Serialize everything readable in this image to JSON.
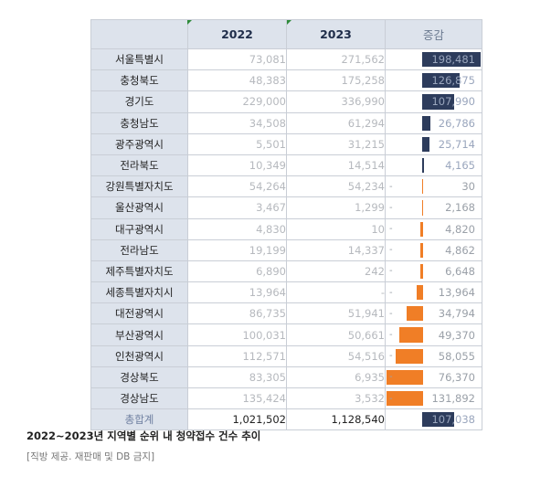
{
  "table": {
    "headers": {
      "region": "",
      "y2022": "2022",
      "y2023": "2023",
      "change": "증감"
    },
    "max_abs_change": 198481,
    "rows": [
      {
        "region": "서울특별시",
        "y2022": "73,081",
        "y2023": "271,562",
        "change": "198,481",
        "change_value": 198481,
        "dash": ""
      },
      {
        "region": "충청북도",
        "y2022": "48,383",
        "y2023": "175,258",
        "change": "126,875",
        "change_value": 126875,
        "dash": ""
      },
      {
        "region": "경기도",
        "y2022": "229,000",
        "y2023": "336,990",
        "change": "107,990",
        "change_value": 107990,
        "dash": ""
      },
      {
        "region": "충청남도",
        "y2022": "34,508",
        "y2023": "61,294",
        "change": "26,786",
        "change_value": 26786,
        "dash": ""
      },
      {
        "region": "광주광역시",
        "y2022": "5,501",
        "y2023": "31,215",
        "change": "25,714",
        "change_value": 25714,
        "dash": ""
      },
      {
        "region": "전라북도",
        "y2022": "10,349",
        "y2023": "14,514",
        "change": "4,165",
        "change_value": 4165,
        "dash": ""
      },
      {
        "region": "강원특별자치도",
        "y2022": "54,264",
        "y2023": "54,234",
        "change": "30",
        "change_value": -30,
        "dash": "-"
      },
      {
        "region": "울산광역시",
        "y2022": "3,467",
        "y2023": "1,299",
        "change": "2,168",
        "change_value": -2168,
        "dash": "-"
      },
      {
        "region": "대구광역시",
        "y2022": "4,830",
        "y2023": "10",
        "change": "4,820",
        "change_value": -4820,
        "dash": "-"
      },
      {
        "region": "전라남도",
        "y2022": "19,199",
        "y2023": "14,337",
        "change": "4,862",
        "change_value": -4862,
        "dash": "-"
      },
      {
        "region": "제주특별자치도",
        "y2022": "6,890",
        "y2023": "242",
        "change": "6,648",
        "change_value": -6648,
        "dash": "-"
      },
      {
        "region": "세종특별자치시",
        "y2022": "13,964",
        "y2023": "-",
        "change": "13,964",
        "change_value": -13964,
        "dash": "-"
      },
      {
        "region": "대전광역시",
        "y2022": "86,735",
        "y2023": "51,941",
        "change": "34,794",
        "change_value": -34794,
        "dash": "-"
      },
      {
        "region": "부산광역시",
        "y2022": "100,031",
        "y2023": "50,661",
        "change": "49,370",
        "change_value": -49370,
        "dash": "-"
      },
      {
        "region": "인천광역시",
        "y2022": "112,571",
        "y2023": "54,516",
        "change": "58,055",
        "change_value": -58055,
        "dash": "-"
      },
      {
        "region": "경상북도",
        "y2022": "83,305",
        "y2023": "6,935",
        "change": "76,370",
        "change_value": -76370,
        "dash": "-"
      },
      {
        "region": "경상남도",
        "y2022": "135,424",
        "y2023": "3,532",
        "change": "131,892",
        "change_value": -131892,
        "dash": "-"
      }
    ],
    "total": {
      "region": "총합계",
      "y2022": "1,021,502",
      "y2023": "1,128,540",
      "change": "107,038",
      "change_value": 107038,
      "dash": ""
    }
  },
  "caption": "2022~2023년 지역별 순위 내 청약접수 건수 추이",
  "source": "[직방 제공. 재판매 및 DB 금지]",
  "colors": {
    "positive_bar": "#2d3c5c",
    "negative_bar": "#f07e26",
    "header_bg": "#dde3ec"
  }
}
